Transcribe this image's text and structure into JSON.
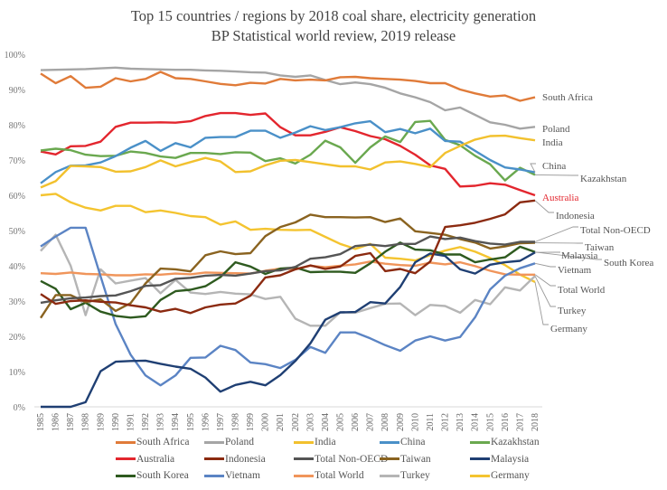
{
  "chart_data": {
    "type": "line",
    "title": "Top 15 countries / regions by 2018 coal share, electricity generation",
    "subtitle": "BP Statistical world review, 2019 release",
    "xlabel": "",
    "ylabel": "",
    "ylim": [
      0,
      100
    ],
    "yticks": [
      "0%",
      "10%",
      "20%",
      "30%",
      "40%",
      "50%",
      "60%",
      "70%",
      "80%",
      "90%",
      "100%"
    ],
    "grid": false,
    "legend_position": "bottom",
    "x": [
      "1985",
      "1986",
      "1987",
      "1988",
      "1989",
      "1990",
      "1991",
      "1992",
      "1993",
      "1994",
      "1995",
      "1996",
      "1997",
      "1998",
      "1999",
      "2000",
      "2001",
      "2002",
      "2003",
      "2004",
      "2005",
      "2006",
      "2007",
      "2008",
      "2009",
      "2010",
      "2011",
      "2012",
      "2013",
      "2014",
      "2015",
      "2016",
      "2017",
      "2018"
    ],
    "series": [
      {
        "name": "South Africa",
        "color": "#E07B39",
        "end_label": "South Africa",
        "values": [
          94.5,
          91.8,
          93.8,
          90.5,
          90.8,
          93.2,
          92.3,
          93.0,
          95.0,
          93.2,
          93.0,
          92.3,
          91.6,
          91.2,
          91.9,
          91.7,
          93.0,
          92.6,
          92.8,
          92.6,
          93.5,
          93.6,
          93.2,
          93.0,
          92.8,
          92.4,
          91.8,
          91.8,
          90.0,
          88.9,
          88.0,
          88.3,
          86.8,
          87.8
        ]
      },
      {
        "name": "Poland",
        "color": "#A5A5A5",
        "end_label": "Poland",
        "values": [
          95.5,
          95.6,
          95.7,
          95.8,
          96.0,
          96.2,
          95.9,
          95.8,
          95.7,
          95.6,
          95.6,
          95.4,
          95.3,
          95.1,
          94.9,
          94.8,
          94.0,
          93.6,
          94.0,
          92.7,
          91.5,
          92.0,
          91.5,
          90.5,
          88.9,
          87.8,
          86.4,
          84.1,
          84.9,
          82.8,
          80.7,
          80.0,
          78.9,
          79.4
        ]
      },
      {
        "name": "India",
        "color": "#F2C12E",
        "end_label": "India",
        "values": [
          62.2,
          64.0,
          68.3,
          68.2,
          68.0,
          66.7,
          66.8,
          68.0,
          69.9,
          68.2,
          69.4,
          70.6,
          69.6,
          66.6,
          66.8,
          68.5,
          69.8,
          70.0,
          69.4,
          68.8,
          68.2,
          68.2,
          67.3,
          69.3,
          69.6,
          68.9,
          68.0,
          72.0,
          74.0,
          75.8,
          76.8,
          76.9,
          76.2,
          75.6
        ]
      },
      {
        "name": "China",
        "color": "#4A90C8",
        "end_label": "China",
        "values": [
          63.4,
          66.6,
          68.4,
          68.5,
          69.3,
          71.1,
          73.5,
          75.4,
          72.6,
          74.8,
          73.6,
          76.3,
          76.5,
          76.5,
          78.3,
          78.3,
          76.3,
          77.8,
          79.6,
          78.5,
          79.3,
          80.4,
          81.0,
          77.9,
          78.8,
          77.6,
          78.9,
          75.4,
          75.2,
          72.6,
          70.0,
          67.9,
          67.3,
          66.5
        ]
      },
      {
        "name": "Kazakhstan",
        "color": "#6AA84F",
        "end_label": "Kazakhstan",
        "values": [
          72.7,
          73.2,
          72.8,
          71.5,
          71.1,
          71.2,
          72.4,
          72.0,
          71.0,
          70.6,
          72.0,
          72.0,
          71.7,
          72.2,
          72.1,
          69.7,
          70.5,
          69.0,
          71.5,
          75.5,
          73.6,
          69.2,
          73.6,
          76.7,
          75.1,
          80.8,
          81.1,
          75.7,
          74.2,
          71.2,
          68.8,
          64.2,
          67.8,
          65.8
        ]
      },
      {
        "name": "Australia",
        "color": "#E3262E",
        "end_label": "Australia",
        "values": [
          72.4,
          71.6,
          73.9,
          74.0,
          75.2,
          79.4,
          80.6,
          80.6,
          80.7,
          80.6,
          81.0,
          82.5,
          83.3,
          83.3,
          82.8,
          83.2,
          79.3,
          77.0,
          77.0,
          78.0,
          79.3,
          78.2,
          76.8,
          75.9,
          74.0,
          71.5,
          68.5,
          67.5,
          62.5,
          62.7,
          63.4,
          63.0,
          61.5,
          60.0
        ]
      },
      {
        "name": "Indonesia",
        "color": "#8B2A10",
        "end_label": "Indonesia",
        "values": [
          32.0,
          29.2,
          30.0,
          30.2,
          29.8,
          29.6,
          28.8,
          28.2,
          27.0,
          27.8,
          26.6,
          28.2,
          29.0,
          29.3,
          31.5,
          36.7,
          37.3,
          39.0,
          40.1,
          39.1,
          39.8,
          42.8,
          43.6,
          38.5,
          39.1,
          37.9,
          41.2,
          51.0,
          51.5,
          52.2,
          53.3,
          54.6,
          58.0,
          58.5
        ]
      },
      {
        "name": "Total Non-OECD",
        "color": "#555555",
        "end_label": "Total Non-OECD",
        "values": [
          29.5,
          30.2,
          30.8,
          31.0,
          31.4,
          31.6,
          32.8,
          34.3,
          34.5,
          36.3,
          36.6,
          37.2,
          37.4,
          37.2,
          37.8,
          38.5,
          38.7,
          39.7,
          42.0,
          42.4,
          43.3,
          45.6,
          46.0,
          45.6,
          46.2,
          46.2,
          48.3,
          47.6,
          48.0,
          47.0,
          46.3,
          46.0,
          46.8,
          46.8
        ]
      },
      {
        "name": "Taiwan",
        "color": "#8A6320",
        "end_label": "Taiwan",
        "values": [
          25.2,
          31.7,
          31.7,
          29.7,
          30.5,
          27.2,
          29.4,
          35.0,
          39.2,
          39.0,
          38.4,
          43.0,
          44.1,
          43.3,
          43.6,
          48.4,
          51.0,
          52.3,
          54.5,
          53.8,
          53.8,
          53.7,
          53.8,
          52.4,
          53.4,
          49.8,
          49.3,
          48.8,
          47.6,
          46.6,
          44.9,
          45.5,
          46.4,
          46.5
        ]
      },
      {
        "name": "Malaysia",
        "color": "#1F3F73",
        "end_label": "Malaysia",
        "values": [
          0,
          0,
          0,
          1.3,
          10.1,
          12.8,
          13.0,
          13.1,
          12.2,
          11.4,
          10.8,
          8.3,
          4.3,
          6.2,
          7.1,
          6.1,
          9.0,
          13.0,
          18.0,
          24.7,
          26.8,
          26.9,
          29.7,
          29.3,
          34.0,
          41.0,
          43.5,
          42.8,
          39.0,
          37.8,
          40.3,
          41.0,
          41.4,
          43.8
        ]
      },
      {
        "name": "South Korea",
        "color": "#2E5A1F",
        "end_label": "South Korea",
        "values": [
          35.7,
          33.5,
          27.7,
          29.5,
          27.0,
          25.8,
          25.3,
          25.7,
          30.3,
          32.8,
          33.2,
          34.2,
          36.8,
          41.0,
          39.8,
          37.7,
          39.2,
          39.5,
          38.2,
          38.3,
          38.3,
          38.0,
          40.7,
          44.0,
          46.6,
          44.6,
          44.4,
          43.2,
          43.2,
          41.0,
          41.8,
          42.4,
          45.4,
          43.9
        ]
      },
      {
        "name": "Vietnam",
        "color": "#5B84C4",
        "end_label": "Vietnam",
        "values": [
          45.5,
          48.3,
          50.8,
          50.8,
          37.0,
          23.5,
          14.8,
          8.9,
          6.1,
          8.9,
          13.9,
          14.0,
          17.3,
          16.1,
          12.6,
          12.1,
          11.0,
          13.3,
          17.0,
          15.3,
          21.1,
          21.1,
          19.4,
          17.5,
          15.9,
          18.8,
          20.0,
          18.8,
          19.8,
          25.4,
          33.3,
          37.2,
          39.3,
          40.7
        ]
      },
      {
        "name": "Total World",
        "color": "#F0955B",
        "end_label": "Total World",
        "values": [
          37.9,
          37.7,
          38.1,
          37.7,
          37.6,
          37.3,
          37.3,
          37.6,
          37.5,
          37.8,
          37.6,
          38.1,
          38.0,
          37.9,
          37.8,
          38.6,
          39.2,
          39.0,
          40.0,
          39.6,
          40.0,
          40.4,
          41.2,
          40.6,
          40.2,
          40.0,
          40.9,
          40.4,
          41.0,
          39.9,
          38.6,
          37.6,
          37.5,
          37.5
        ]
      },
      {
        "name": "Turkey",
        "color": "#B5B5B5",
        "end_label": "Turkey",
        "values": [
          44.2,
          48.8,
          40.0,
          26.0,
          39.0,
          35.0,
          35.8,
          36.5,
          32.2,
          36.0,
          32.4,
          32.0,
          32.6,
          32.1,
          31.9,
          30.6,
          31.2,
          25.0,
          23.0,
          23.0,
          26.8,
          26.7,
          28.0,
          29.2,
          29.3,
          26.0,
          28.9,
          28.6,
          26.7,
          30.3,
          29.1,
          33.9,
          33.0,
          37.1
        ]
      },
      {
        "name": "Germany",
        "color": "#F4C430",
        "end_label": "Germany",
        "values": [
          60.0,
          60.4,
          58.0,
          56.5,
          55.7,
          57.0,
          57.0,
          55.2,
          55.7,
          55.0,
          54.1,
          53.8,
          51.7,
          52.6,
          50.2,
          50.5,
          50.2,
          50.1,
          50.2,
          48.2,
          46.2,
          44.8,
          46.2,
          42.3,
          42.0,
          41.5,
          43.0,
          44.3,
          45.3,
          44.0,
          42.2,
          40.2,
          37.5,
          35.4
        ]
      }
    ],
    "end_labels": [
      {
        "series": "South Africa",
        "text": "South Africa"
      },
      {
        "series": "Poland",
        "text": "Poland"
      },
      {
        "series": "India",
        "text": "India"
      },
      {
        "series": "China",
        "text": "China"
      },
      {
        "series": "Kazakhstan",
        "text": "Kazakhstan"
      },
      {
        "series": "Australia",
        "text": "Australia"
      },
      {
        "series": "Indonesia",
        "text": "Indonesia"
      },
      {
        "series": "Total Non-OECD",
        "text": "Total Non-OECD"
      },
      {
        "series": "Taiwan",
        "text": "Taiwan"
      },
      {
        "series": "Malaysia",
        "text": "Malaysia"
      },
      {
        "series": "South Korea",
        "text": "South Korea"
      },
      {
        "series": "Vietnam",
        "text": "Vietnam"
      },
      {
        "series": "Total World",
        "text": "Total World"
      },
      {
        "series": "Turkey",
        "text": "Turkey"
      },
      {
        "series": "Germany",
        "text": "Germany"
      }
    ],
    "legend": [
      "South Africa",
      "Poland",
      "India",
      "China",
      "Kazakhstan",
      "Australia",
      "Indonesia",
      "Total Non-OECD",
      "Taiwan",
      "Malaysia",
      "South Korea",
      "Vietnam",
      "Total World",
      "Turkey",
      "Germany"
    ]
  }
}
